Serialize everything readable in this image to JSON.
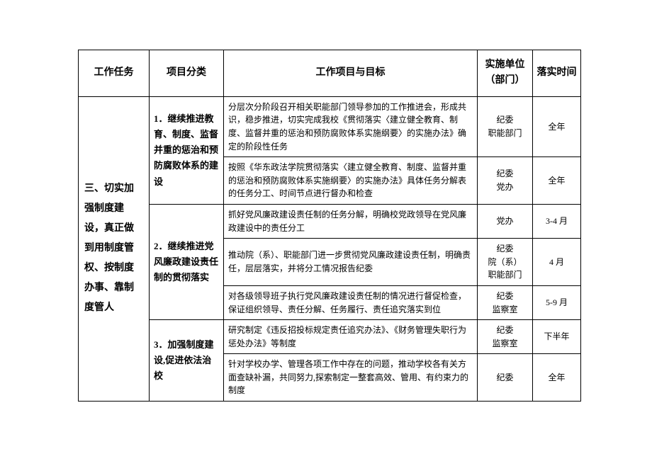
{
  "headers": {
    "task": "工作任务",
    "category": "项目分类",
    "goal": "工作项目与目标",
    "unit": "实施单位（部门）",
    "time": "落实时间"
  },
  "task": "三、切实加强制度建设，真正做到用制度管权、按制度办事、靠制度管人",
  "categories": [
    {
      "label": "1．继续推进教育、制度、监督并重的惩治和预防腐败体系的建设",
      "rows": [
        {
          "goal": "分层次分阶段召开相关职能部门领导参加的工作推进会，形成共识，稳步推进，切实完成我校《贯彻落实〈建立健全教育、制度、监督并重的惩治和预防腐败体系实施纲要〉的实施办法》确定的阶段性任务",
          "unit": "纪委\n职能部门",
          "time": "全年"
        },
        {
          "goal": "按照《华东政法学院贯彻落实〈建立健全教育、制度、监督并重的惩治和预防腐败体系实施纲要〉的实施办法》具体任务分解表的任务分工、时间节点进行督办和检查",
          "unit": "纪委\n党办",
          "time": "全年"
        }
      ]
    },
    {
      "label": "2．继续推进党风廉政建设责任制的贯彻落实",
      "rows": [
        {
          "goal": "抓好党风廉政建设责任制的任务分解，明确校党政领导在党风廉政建设中的责任分工",
          "unit": "党办",
          "time": "3-4 月"
        },
        {
          "goal": "推动院（系）、职能部门进一步贯彻党风廉政建设责任制，明确责任，层层落实，并将分工情况报告纪委",
          "unit": "纪委\n院（系）\n职能部门",
          "time": "4 月"
        },
        {
          "goal": "对各级领导班子执行党风廉政建设责任制的情况进行督促检查，保证组织领导、责任分解、任务履行、责任追究落实到位",
          "unit": "纪委\n监察室",
          "time": "5-9 月"
        }
      ]
    },
    {
      "label": "3．加强制度建设,促进依法治校",
      "rows": [
        {
          "goal": "研究制定《违反招投标规定责任追究办法》、《财务管理失职行为惩处办法》等制度",
          "unit": "纪委\n监察室",
          "time": "下半年"
        },
        {
          "goal": "针对学校办学、管理各项工作中存在的问题，推动学校各有关方面查缺补漏，共同努力,探索制定一整套高效、管用、有约束力的制度",
          "unit": "纪委",
          "time": "全年"
        }
      ]
    }
  ]
}
